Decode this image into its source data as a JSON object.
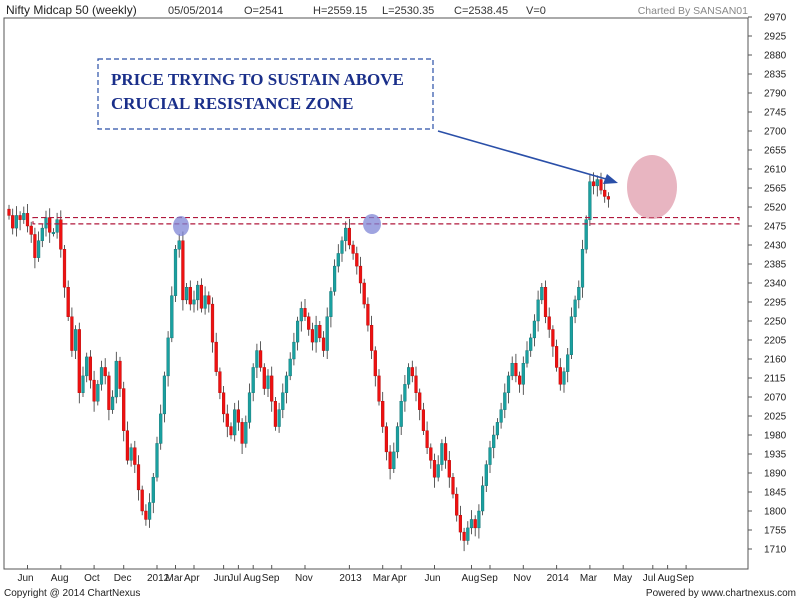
{
  "header": {
    "title": "Nifty Midcap 50 (weekly)",
    "date": "05/05/2014",
    "open": "O=2541",
    "high": "H=2559.15",
    "low": "L=2530.35",
    "close": "C=2538.45",
    "volume": "V=0",
    "charted_by": "Charted By SANSAN01"
  },
  "footer": {
    "copyright": "Copyright @ 2014 ChartNexus",
    "powered_by": "Powered by www.chartnexus.com"
  },
  "annotation": {
    "line1": "PRICE TRYING TO SUSTAIN ABOVE",
    "line2": "CRUCIAL RESISTANCE ZONE"
  },
  "colors": {
    "up": "#1aa0a0",
    "down": "#ee1111",
    "wick": "#333333",
    "annotation_text": "#1a2f8a",
    "resistance_zone": "#b0183c",
    "highlight_blue": "#7f86d6",
    "highlight_pink": "#d6788e"
  },
  "chart_data": {
    "type": "candlestick",
    "title": "Nifty Midcap 50 (weekly)",
    "ylim": [
      1685,
      2975
    ],
    "y_ticks": [
      2970,
      2925,
      2880,
      2835,
      2790,
      2745,
      2700,
      2655,
      2610,
      2565,
      2520,
      2475,
      2430,
      2385,
      2340,
      2295,
      2250,
      2205,
      2160,
      2115,
      2070,
      2025,
      1980,
      1935,
      1890,
      1845,
      1800,
      1755,
      1710
    ],
    "x_ticks": [
      "Jun",
      "Aug",
      "Oct",
      "Dec",
      "2012",
      "Mar",
      "Apr",
      "Jun",
      "Jul",
      "Aug",
      "Sep",
      "Nov",
      "2013",
      "Mar",
      "Apr",
      "Jun",
      "Aug",
      "Sep",
      "Nov",
      "2014",
      "Mar",
      "May",
      "Jul",
      "Aug",
      "Sep"
    ],
    "x_tick_weeks": [
      5,
      14,
      23,
      31,
      40,
      45,
      50,
      58,
      62,
      66,
      71,
      80,
      92,
      101,
      106,
      115,
      125,
      130,
      139,
      148,
      157,
      166,
      174,
      178,
      183
    ],
    "resistance_zone": [
      2480,
      2495
    ],
    "series": [
      {
        "close": 2500,
        "up": false
      },
      {
        "close": 2470,
        "up": false
      },
      {
        "close": 2500,
        "up": true
      },
      {
        "close": 2490,
        "up": false
      },
      {
        "close": 2505,
        "up": true
      },
      {
        "close": 2475,
        "up": false
      },
      {
        "close": 2455,
        "up": false
      },
      {
        "close": 2400,
        "up": false
      },
      {
        "close": 2440,
        "up": true
      },
      {
        "close": 2470,
        "up": true
      },
      {
        "close": 2495,
        "up": true
      },
      {
        "close": 2460,
        "up": false
      },
      {
        "close": 2460,
        "up": true
      },
      {
        "close": 2490,
        "up": true
      },
      {
        "close": 2420,
        "up": false
      },
      {
        "close": 2330,
        "up": false
      },
      {
        "close": 2260,
        "up": false
      },
      {
        "close": 2180,
        "up": false
      },
      {
        "close": 2230,
        "up": true
      },
      {
        "close": 2080,
        "up": false
      },
      {
        "close": 2120,
        "up": true
      },
      {
        "close": 2165,
        "up": true
      },
      {
        "close": 2110,
        "up": false
      },
      {
        "close": 2060,
        "up": false
      },
      {
        "close": 2100,
        "up": true
      },
      {
        "close": 2140,
        "up": true
      },
      {
        "close": 2120,
        "up": false
      },
      {
        "close": 2040,
        "up": false
      },
      {
        "close": 2070,
        "up": true
      },
      {
        "close": 2155,
        "up": true
      },
      {
        "close": 2090,
        "up": false
      },
      {
        "close": 1990,
        "up": false
      },
      {
        "close": 1920,
        "up": false
      },
      {
        "close": 1950,
        "up": true
      },
      {
        "close": 1910,
        "up": false
      },
      {
        "close": 1850,
        "up": false
      },
      {
        "close": 1800,
        "up": false
      },
      {
        "close": 1780,
        "up": false
      },
      {
        "close": 1820,
        "up": true
      },
      {
        "close": 1880,
        "up": true
      },
      {
        "close": 1960,
        "up": true
      },
      {
        "close": 2030,
        "up": true
      },
      {
        "close": 2120,
        "up": true
      },
      {
        "close": 2210,
        "up": true
      },
      {
        "close": 2310,
        "up": true
      },
      {
        "close": 2420,
        "up": true
      },
      {
        "close": 2440,
        "up": true
      },
      {
        "close": 2300,
        "up": false
      },
      {
        "close": 2330,
        "up": true
      },
      {
        "close": 2290,
        "up": false
      },
      {
        "close": 2300,
        "up": true
      },
      {
        "close": 2335,
        "up": true
      },
      {
        "close": 2280,
        "up": false
      },
      {
        "close": 2310,
        "up": true
      },
      {
        "close": 2290,
        "up": false
      },
      {
        "close": 2200,
        "up": false
      },
      {
        "close": 2130,
        "up": false
      },
      {
        "close": 2080,
        "up": false
      },
      {
        "close": 2030,
        "up": false
      },
      {
        "close": 2000,
        "up": false
      },
      {
        "close": 1980,
        "up": false
      },
      {
        "close": 2040,
        "up": true
      },
      {
        "close": 2010,
        "up": false
      },
      {
        "close": 1960,
        "up": false
      },
      {
        "close": 2010,
        "up": true
      },
      {
        "close": 2080,
        "up": true
      },
      {
        "close": 2140,
        "up": true
      },
      {
        "close": 2180,
        "up": true
      },
      {
        "close": 2140,
        "up": false
      },
      {
        "close": 2090,
        "up": false
      },
      {
        "close": 2120,
        "up": true
      },
      {
        "close": 2060,
        "up": false
      },
      {
        "close": 2000,
        "up": false
      },
      {
        "close": 2040,
        "up": true
      },
      {
        "close": 2080,
        "up": true
      },
      {
        "close": 2120,
        "up": true
      },
      {
        "close": 2160,
        "up": true
      },
      {
        "close": 2200,
        "up": true
      },
      {
        "close": 2250,
        "up": true
      },
      {
        "close": 2280,
        "up": true
      },
      {
        "close": 2260,
        "up": false
      },
      {
        "close": 2230,
        "up": false
      },
      {
        "close": 2200,
        "up": false
      },
      {
        "close": 2240,
        "up": true
      },
      {
        "close": 2210,
        "up": false
      },
      {
        "close": 2180,
        "up": false
      },
      {
        "close": 2260,
        "up": true
      },
      {
        "close": 2320,
        "up": true
      },
      {
        "close": 2380,
        "up": true
      },
      {
        "close": 2410,
        "up": true
      },
      {
        "close": 2440,
        "up": true
      },
      {
        "close": 2470,
        "up": true
      },
      {
        "close": 2430,
        "up": false
      },
      {
        "close": 2410,
        "up": false
      },
      {
        "close": 2380,
        "up": false
      },
      {
        "close": 2340,
        "up": false
      },
      {
        "close": 2290,
        "up": false
      },
      {
        "close": 2240,
        "up": false
      },
      {
        "close": 2180,
        "up": false
      },
      {
        "close": 2120,
        "up": false
      },
      {
        "close": 2060,
        "up": false
      },
      {
        "close": 2000,
        "up": false
      },
      {
        "close": 1940,
        "up": false
      },
      {
        "close": 1900,
        "up": false
      },
      {
        "close": 1940,
        "up": true
      },
      {
        "close": 2000,
        "up": true
      },
      {
        "close": 2060,
        "up": true
      },
      {
        "close": 2100,
        "up": true
      },
      {
        "close": 2140,
        "up": true
      },
      {
        "close": 2120,
        "up": false
      },
      {
        "close": 2080,
        "up": false
      },
      {
        "close": 2040,
        "up": false
      },
      {
        "close": 1990,
        "up": false
      },
      {
        "close": 1950,
        "up": false
      },
      {
        "close": 1920,
        "up": false
      },
      {
        "close": 1880,
        "up": false
      },
      {
        "close": 1910,
        "up": true
      },
      {
        "close": 1960,
        "up": true
      },
      {
        "close": 1920,
        "up": false
      },
      {
        "close": 1880,
        "up": false
      },
      {
        "close": 1840,
        "up": false
      },
      {
        "close": 1790,
        "up": false
      },
      {
        "close": 1750,
        "up": false
      },
      {
        "close": 1730,
        "up": false
      },
      {
        "close": 1760,
        "up": true
      },
      {
        "close": 1780,
        "up": true
      },
      {
        "close": 1760,
        "up": false
      },
      {
        "close": 1800,
        "up": true
      },
      {
        "close": 1860,
        "up": true
      },
      {
        "close": 1910,
        "up": true
      },
      {
        "close": 1950,
        "up": true
      },
      {
        "close": 1980,
        "up": true
      },
      {
        "close": 2010,
        "up": true
      },
      {
        "close": 2040,
        "up": true
      },
      {
        "close": 2080,
        "up": true
      },
      {
        "close": 2120,
        "up": true
      },
      {
        "close": 2150,
        "up": true
      },
      {
        "close": 2120,
        "up": false
      },
      {
        "close": 2100,
        "up": false
      },
      {
        "close": 2150,
        "up": true
      },
      {
        "close": 2180,
        "up": true
      },
      {
        "close": 2210,
        "up": true
      },
      {
        "close": 2250,
        "up": true
      },
      {
        "close": 2300,
        "up": true
      },
      {
        "close": 2330,
        "up": true
      },
      {
        "close": 2260,
        "up": false
      },
      {
        "close": 2230,
        "up": false
      },
      {
        "close": 2190,
        "up": false
      },
      {
        "close": 2140,
        "up": false
      },
      {
        "close": 2100,
        "up": false
      },
      {
        "close": 2130,
        "up": true
      },
      {
        "close": 2170,
        "up": true
      },
      {
        "close": 2260,
        "up": true
      },
      {
        "close": 2300,
        "up": true
      },
      {
        "close": 2330,
        "up": true
      },
      {
        "close": 2420,
        "up": true
      },
      {
        "close": 2490,
        "up": true
      },
      {
        "close": 2580,
        "up": true
      },
      {
        "close": 2570,
        "up": false
      },
      {
        "close": 2585,
        "up": true
      },
      {
        "close": 2560,
        "up": false
      },
      {
        "close": 2545,
        "up": false
      },
      {
        "close": 2538.45,
        "up": false
      }
    ]
  }
}
